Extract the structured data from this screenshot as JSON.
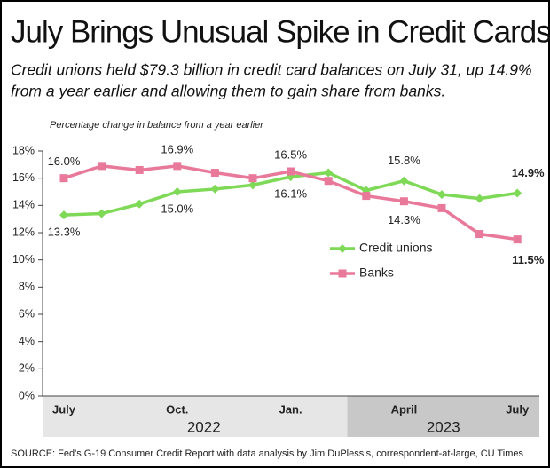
{
  "chart_data": {
    "type": "line",
    "title": "July Brings Unusual Spike in Credit Cards",
    "subtitle": [
      "Credit unions held $79.3 billion in credit card balances on July 31, up 14.9%",
      "from a year earlier and allowing them to gain share from banks."
    ],
    "y_label": "Percentage change in balance from a year earlier",
    "source": "SOURCE: Fed's G-19 Consumer Credit Report with data analysis by Jim DuPlessis, correspondent-at-large, CU Times",
    "categories": [
      "July",
      null,
      null,
      "Oct.",
      null,
      null,
      "Jan.",
      null,
      null,
      "April",
      null,
      null,
      "July"
    ],
    "year_groups": [
      {
        "label": "2022",
        "color": "#e6e6e6"
      },
      {
        "label": "2023",
        "color": "#c8c8c8"
      }
    ],
    "series": [
      {
        "name": "Credit unions",
        "color": "#7ed957",
        "values": [
          13.3,
          13.4,
          14.1,
          15.0,
          15.2,
          15.5,
          16.1,
          16.4,
          15.1,
          15.8,
          14.8,
          14.5,
          14.9
        ],
        "value_labels": [
          "13.3%",
          null,
          null,
          "15.0%",
          null,
          null,
          "16.1%",
          null,
          null,
          "15.8%",
          null,
          null,
          "14.9%"
        ]
      },
      {
        "name": "Banks",
        "color": "#e8799a",
        "values": [
          16.0,
          16.9,
          16.6,
          16.9,
          16.4,
          16.0,
          16.5,
          15.8,
          14.7,
          14.3,
          13.8,
          11.9,
          11.5
        ],
        "value_labels": [
          "16.0%",
          null,
          null,
          "16.9%",
          null,
          null,
          "16.5%",
          null,
          null,
          "14.3%",
          null,
          null,
          "11.5%"
        ]
      }
    ],
    "ylim": [
      0,
      18
    ],
    "yticks": [
      {
        "value": 0,
        "label": "0%"
      },
      {
        "value": 2,
        "label": "2%"
      },
      {
        "value": 4,
        "label": "4%"
      },
      {
        "value": 6,
        "label": "6%"
      },
      {
        "value": 8,
        "label": "8%"
      },
      {
        "value": 10,
        "label": "10%"
      },
      {
        "value": 12,
        "label": "12%"
      },
      {
        "value": 14,
        "label": "14%"
      },
      {
        "value": 16,
        "label": "16%"
      },
      {
        "value": 18,
        "label": "18%"
      }
    ],
    "grid": false
  }
}
